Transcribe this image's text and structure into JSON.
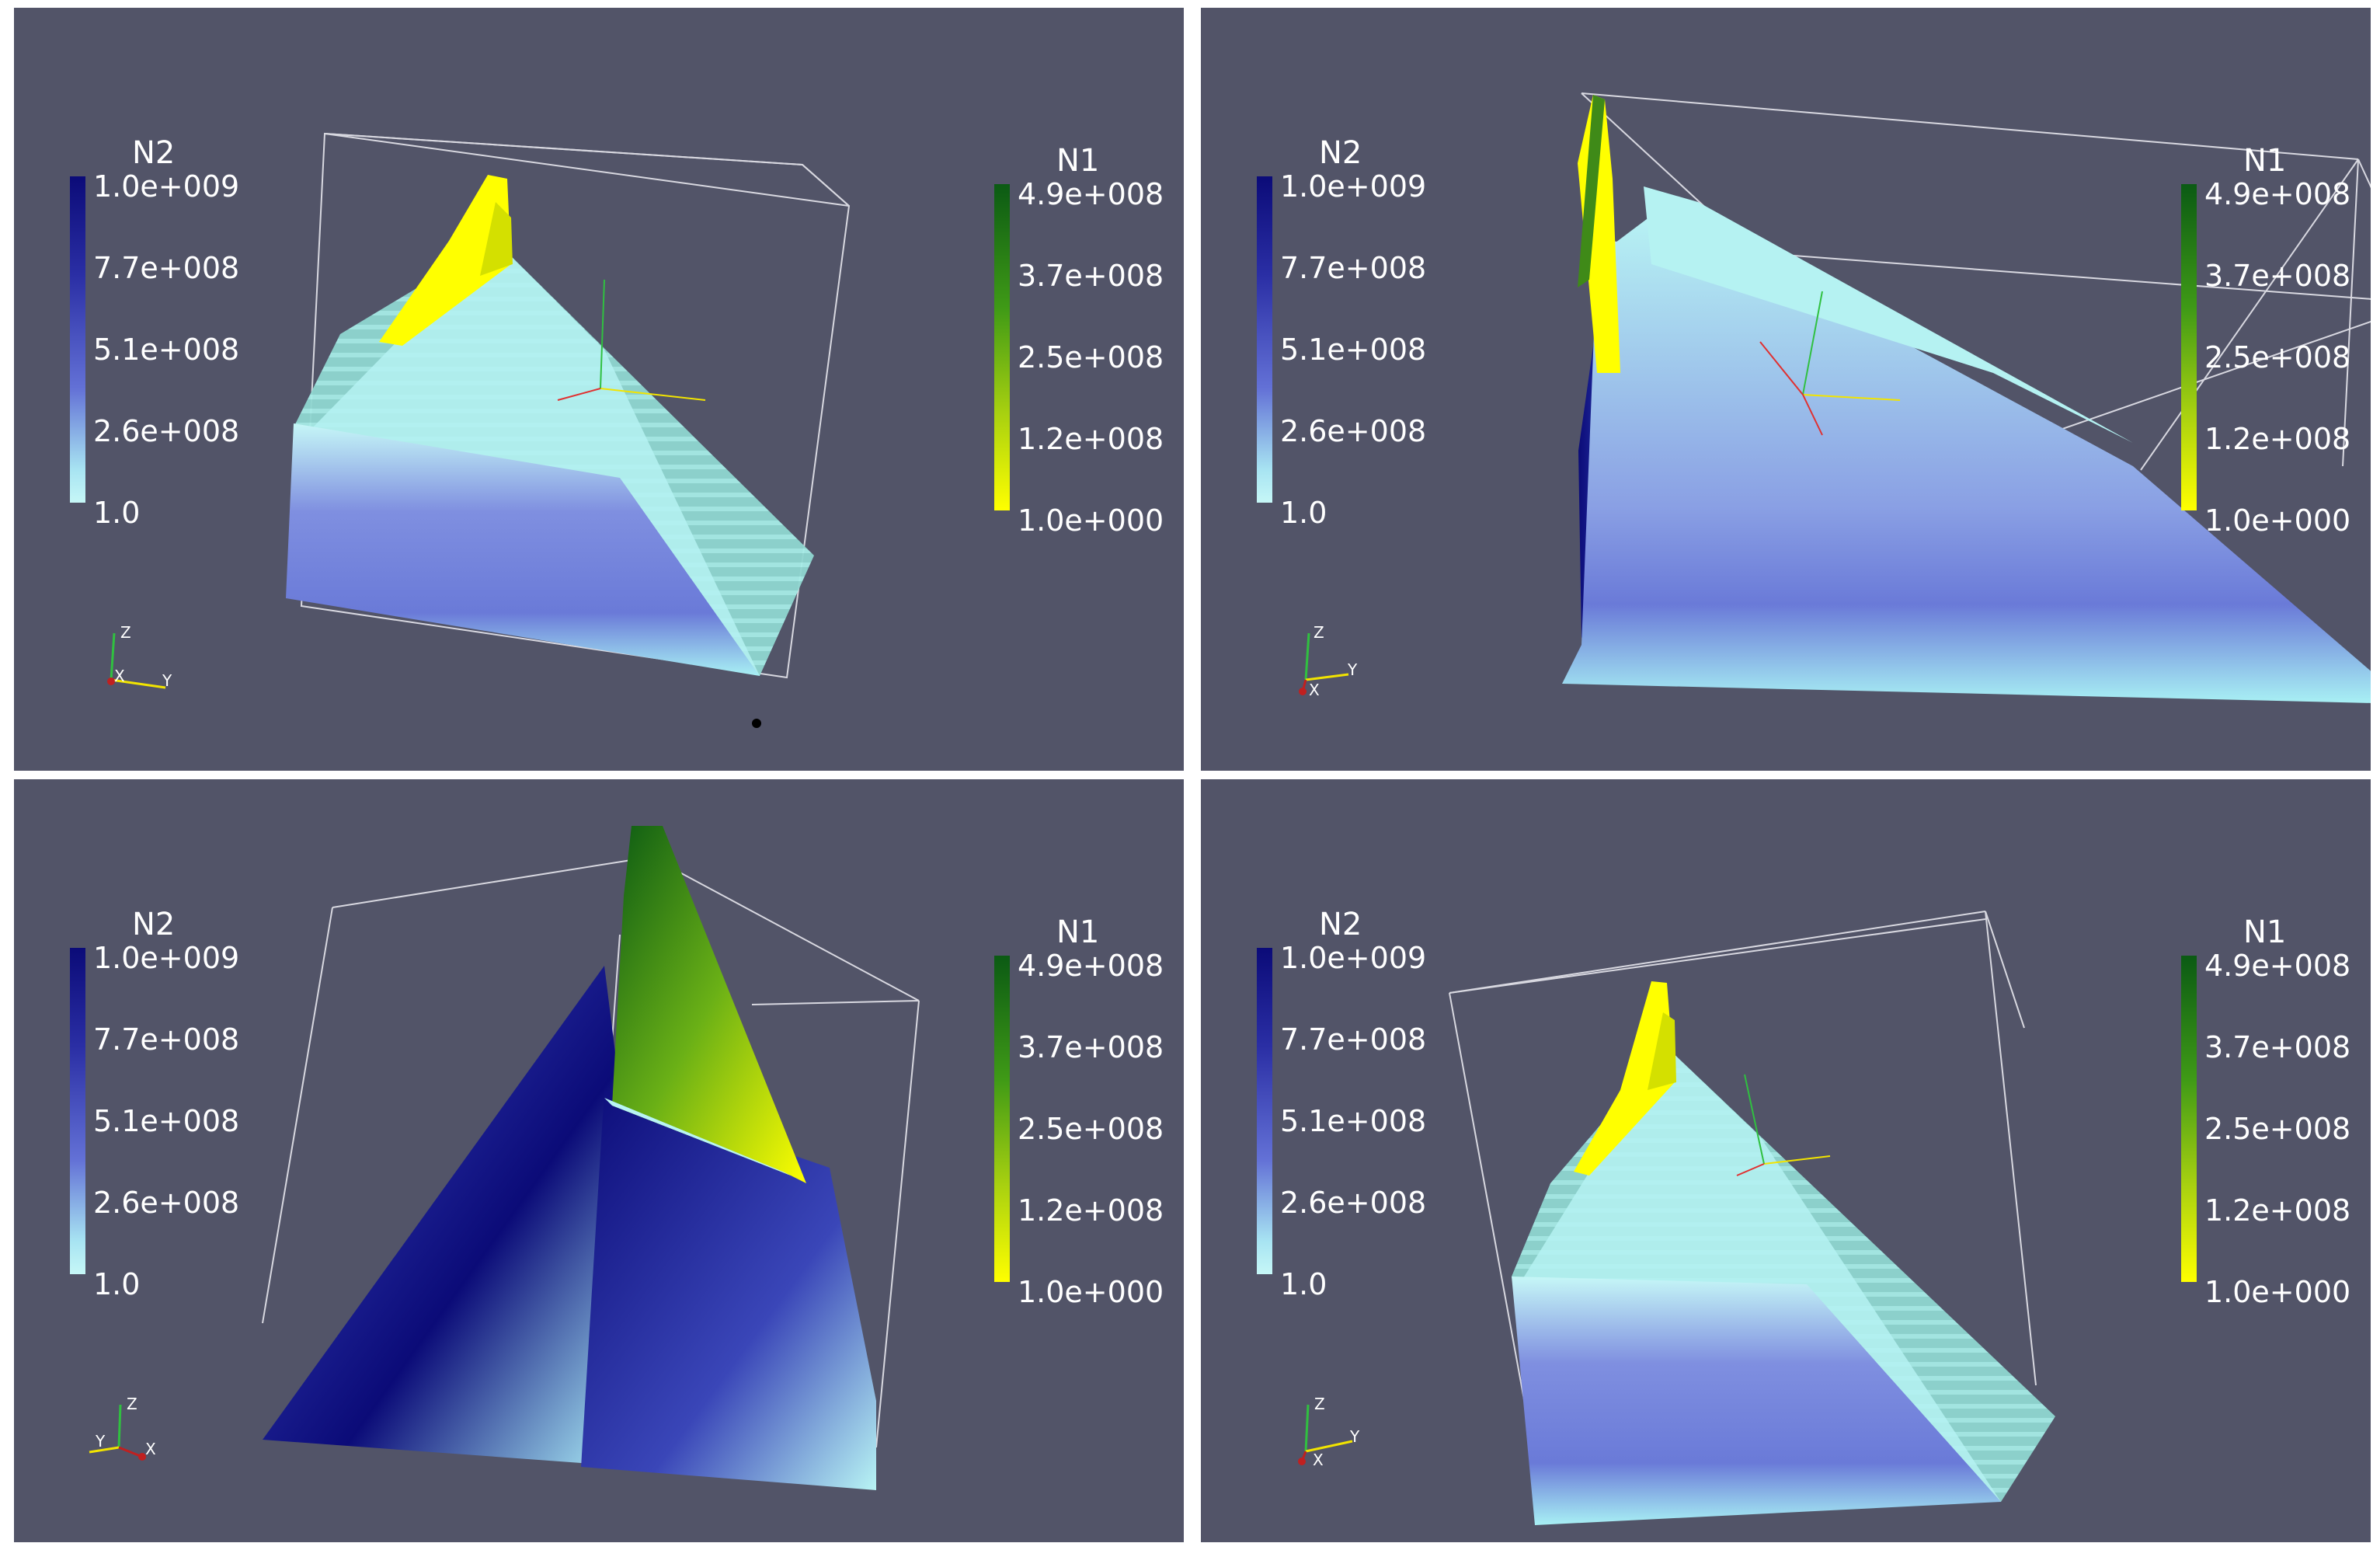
{
  "views": [
    {
      "legend_n2": {
        "title": "N2",
        "ticks": [
          "1.0e+009",
          "7.7e+008",
          "5.1e+008",
          "2.6e+008",
          "1.0"
        ]
      },
      "legend_n1": {
        "title": "N1",
        "ticks": [
          "4.9e+008",
          "3.7e+008",
          "2.5e+008",
          "1.2e+008",
          "1.0e+000"
        ]
      },
      "triad": {
        "z": "Z",
        "x": "X",
        "y": "Y"
      }
    },
    {
      "legend_n2": {
        "title": "N2",
        "ticks": [
          "1.0e+009",
          "7.7e+008",
          "5.1e+008",
          "2.6e+008",
          "1.0"
        ]
      },
      "legend_n1": {
        "title": "N1",
        "ticks": [
          "4.9e+008",
          "3.7e+008",
          "2.5e+008",
          "1.2e+008",
          "1.0e+000"
        ]
      },
      "triad": {
        "z": "Z",
        "x": "X",
        "y": "Y"
      }
    },
    {
      "legend_n2": {
        "title": "N2",
        "ticks": [
          "1.0e+009",
          "7.7e+008",
          "5.1e+008",
          "2.6e+008",
          "1.0"
        ]
      },
      "legend_n1": {
        "title": "N1",
        "ticks": [
          "4.9e+008",
          "3.7e+008",
          "2.5e+008",
          "1.2e+008",
          "1.0e+000"
        ]
      },
      "triad": {
        "z": "Z",
        "x": "X",
        "y": "Y"
      }
    },
    {
      "legend_n2": {
        "title": "N2",
        "ticks": [
          "1.0e+009",
          "7.7e+008",
          "5.1e+008",
          "2.6e+008",
          "1.0"
        ]
      },
      "legend_n1": {
        "title": "N1",
        "ticks": [
          "4.9e+008",
          "3.7e+008",
          "2.5e+008",
          "1.2e+008",
          "1.0e+000"
        ]
      },
      "triad": {
        "z": "Z",
        "x": "X",
        "y": "Y"
      }
    }
  ],
  "colors": {
    "background": "#525468",
    "n2_high": "#0b0b78",
    "n2_low": "#c6f7f7",
    "n1_high": "#0b5a14",
    "n1_low": "#ffff00"
  }
}
